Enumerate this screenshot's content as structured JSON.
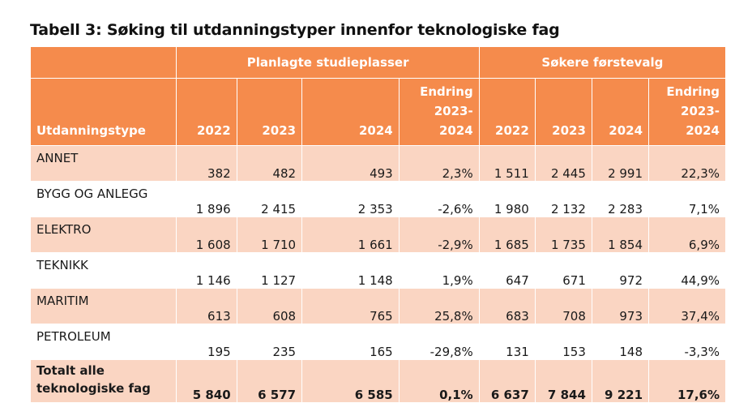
{
  "title": "Tabell 3: Søking til utdanningstyper innenfor teknologiske fag",
  "header": {
    "group_planned": "Planlagte studieplasser",
    "group_applicants": "Søkere førstevalg",
    "col_type": "Utdanningstype",
    "col_2022": "2022",
    "col_2023": "2023",
    "col_2024": "2024",
    "col_change_line1": "Endring",
    "col_change_line2": "2023-",
    "col_change_line3": "2024"
  },
  "rows": [
    {
      "name": "ANNET",
      "p2022": "382",
      "p2023": "482",
      "p2024": "493",
      "pchg": "2,3%",
      "s2022": "1 511",
      "s2023": "2 445",
      "s2024": "2 991",
      "schg": "22,3%"
    },
    {
      "name": "BYGG OG ANLEGG",
      "p2022": "1 896",
      "p2023": "2 415",
      "p2024": "2 353",
      "pchg": "-2,6%",
      "s2022": "1 980",
      "s2023": "2 132",
      "s2024": "2 283",
      "schg": "7,1%"
    },
    {
      "name": "ELEKTRO",
      "p2022": "1 608",
      "p2023": "1 710",
      "p2024": "1 661",
      "pchg": "-2,9%",
      "s2022": "1 685",
      "s2023": "1 735",
      "s2024": "1 854",
      "schg": "6,9%"
    },
    {
      "name": "TEKNIKK",
      "p2022": "1 146",
      "p2023": "1 127",
      "p2024": "1 148",
      "pchg": "1,9%",
      "s2022": "647",
      "s2023": "671",
      "s2024": "972",
      "schg": "44,9%"
    },
    {
      "name": "MARITIM",
      "p2022": "613",
      "p2023": "608",
      "p2024": "765",
      "pchg": "25,8%",
      "s2022": "683",
      "s2023": "708",
      "s2024": "973",
      "schg": "37,4%"
    },
    {
      "name": "PETROLEUM",
      "p2022": "195",
      "p2023": "235",
      "p2024": "165",
      "pchg": "-29,8%",
      "s2022": "131",
      "s2023": "153",
      "s2024": "148",
      "schg": "-3,3%"
    }
  ],
  "total": {
    "name": "Totalt alle teknologiske fag",
    "p2022": "5 840",
    "p2023": "6 577",
    "p2024": "6 585",
    "pchg": "0,1%",
    "s2022": "6 637",
    "s2023": "7 844",
    "s2024": "9 221",
    "schg": "17,6%"
  },
  "colors": {
    "header_orange": "#f58b4c",
    "row_shade": "#fad5c2",
    "row_white": "#ffffff"
  }
}
